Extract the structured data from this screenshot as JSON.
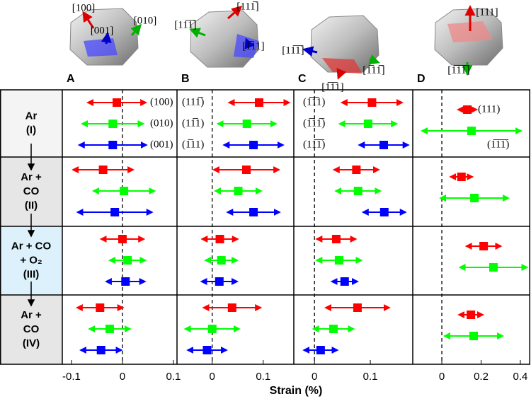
{
  "xlabel": "Strain (%)",
  "row_labels": [
    [
      "Ar",
      "(I)"
    ],
    [
      "Ar +",
      "CO",
      "(II)"
    ],
    [
      "Ar + CO",
      "+ O₂",
      "(III)"
    ],
    [
      "Ar +",
      "CO",
      "(IV)"
    ]
  ],
  "chart_data": [
    {
      "type": "errorbar",
      "panel": "A",
      "crystal_labels": [
        "[100]",
        "[001]",
        "[010]"
      ],
      "xlim": [
        -0.118,
        0.107
      ],
      "xticks": [
        -0.1,
        0,
        0.1
      ],
      "series": [
        {
          "name": "(100)",
          "color": "#ff0000",
          "values": [
            -0.011,
            -0.038,
            0.0,
            -0.044
          ],
          "errors": [
            0.057,
            0.059,
            0.042,
            0.045
          ]
        },
        {
          "name": "(010)",
          "color": "#00ff00",
          "values": [
            -0.019,
            0.003,
            0.01,
            -0.025
          ],
          "errors": [
            0.06,
            0.06,
            0.035,
            0.04
          ]
        },
        {
          "name": "(001)",
          "color": "#0000ff",
          "values": [
            -0.019,
            -0.015,
            0.006,
            -0.042
          ],
          "errors": [
            0.066,
            0.073,
            0.038,
            0.04
          ]
        }
      ]
    },
    {
      "type": "errorbar",
      "panel": "B",
      "crystal_labels": [
        "[11̅1̅]",
        "[111̅]",
        "[1̅11]"
      ],
      "xlim": [
        -0.069,
        0.16
      ],
      "xticks": [
        0,
        0.1
      ],
      "series": [
        {
          "name": "(111̅)",
          "color": "#ff0000",
          "values": [
            0.092,
            0.067,
            0.015,
            0.039
          ],
          "errors": [
            0.059,
            0.064,
            0.035,
            0.056
          ]
        },
        {
          "name": "(11̅1)",
          "color": "#00ff00",
          "values": [
            0.068,
            0.051,
            0.018,
            0.0
          ],
          "errors": [
            0.057,
            0.045,
            0.031,
            0.053
          ]
        },
        {
          "name": "(1̅11)",
          "color": "#0000ff",
          "values": [
            0.081,
            0.081,
            0.014,
            -0.01
          ],
          "errors": [
            0.058,
            0.051,
            0.035,
            0.038
          ]
        }
      ]
    },
    {
      "type": "errorbar",
      "panel": "C",
      "crystal_labels": [
        "[11̅1̅]",
        "[1̅1̅1]",
        "[1̅11̅]"
      ],
      "xlim": [
        -0.037,
        0.176
      ],
      "xticks": [
        0,
        0.1
      ],
      "series": [
        {
          "name": "(1̅1̅1)",
          "color": "#ff0000",
          "values": [
            0.103,
            0.075,
            0.039,
            0.077
          ],
          "errors": [
            0.054,
            0.04,
            0.035,
            0.057
          ]
        },
        {
          "name": "(1̅11̅)",
          "color": "#00ff00",
          "values": [
            0.096,
            0.078,
            0.044,
            0.034
          ],
          "errors": [
            0.051,
            0.04,
            0.04,
            0.036
          ]
        },
        {
          "name": "(11̅1̅)",
          "color": "#0000ff",
          "values": [
            0.124,
            0.125,
            0.054,
            0.011
          ],
          "errors": [
            0.044,
            0.038,
            0.023,
            0.03
          ]
        }
      ]
    },
    {
      "type": "errorbar",
      "panel": "D",
      "crystal_labels": [
        "[111]",
        "[1̅1̅1̅]"
      ],
      "xlim": [
        -0.148,
        0.447
      ],
      "xticks": [
        0,
        0.2,
        0.4
      ],
      "series": [
        {
          "name": "(111)",
          "color": "#ff0000",
          "values": [
            0.13,
            0.1,
            0.213,
            0.148
          ],
          "errors": [
            0.047,
            0.056,
            0.088,
            0.061
          ]
        },
        {
          "name": "(1̅1̅1̅)",
          "color": "#00ff00",
          "values": [
            0.151,
            0.166,
            0.263,
            0.162
          ],
          "errors": [
            0.252,
            0.173,
            0.171,
            0.148
          ]
        }
      ]
    }
  ]
}
